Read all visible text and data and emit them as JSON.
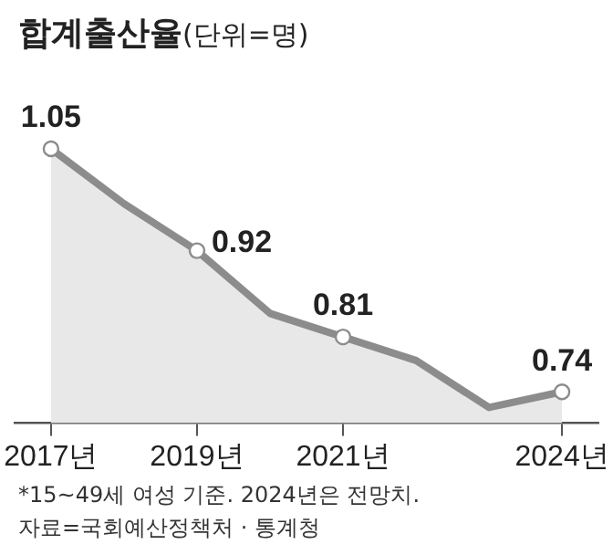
{
  "chart_data": {
    "type": "area",
    "title": "합계출산율",
    "subtitle": "(단위=명)",
    "categories": [
      "2017년",
      null,
      "2019년",
      null,
      "2021년",
      null,
      null,
      "2024년"
    ],
    "series": [
      {
        "color": "#8c8c8c",
        "values": [
          1.05,
          0.98,
          0.92,
          0.84,
          0.81,
          0.78,
          0.72,
          0.74
        ],
        "value_labels": [
          "1.05",
          null,
          "0.92",
          null,
          "0.81",
          null,
          null,
          "0.74"
        ]
      }
    ],
    "tick_labels": "x",
    "grid": false,
    "legend": false,
    "marker": "circle",
    "annotations": [
      "*15~49세 여성 기준. 2024년은 전망치.",
      "자료=국회예산정책처 · 통계청"
    ]
  }
}
